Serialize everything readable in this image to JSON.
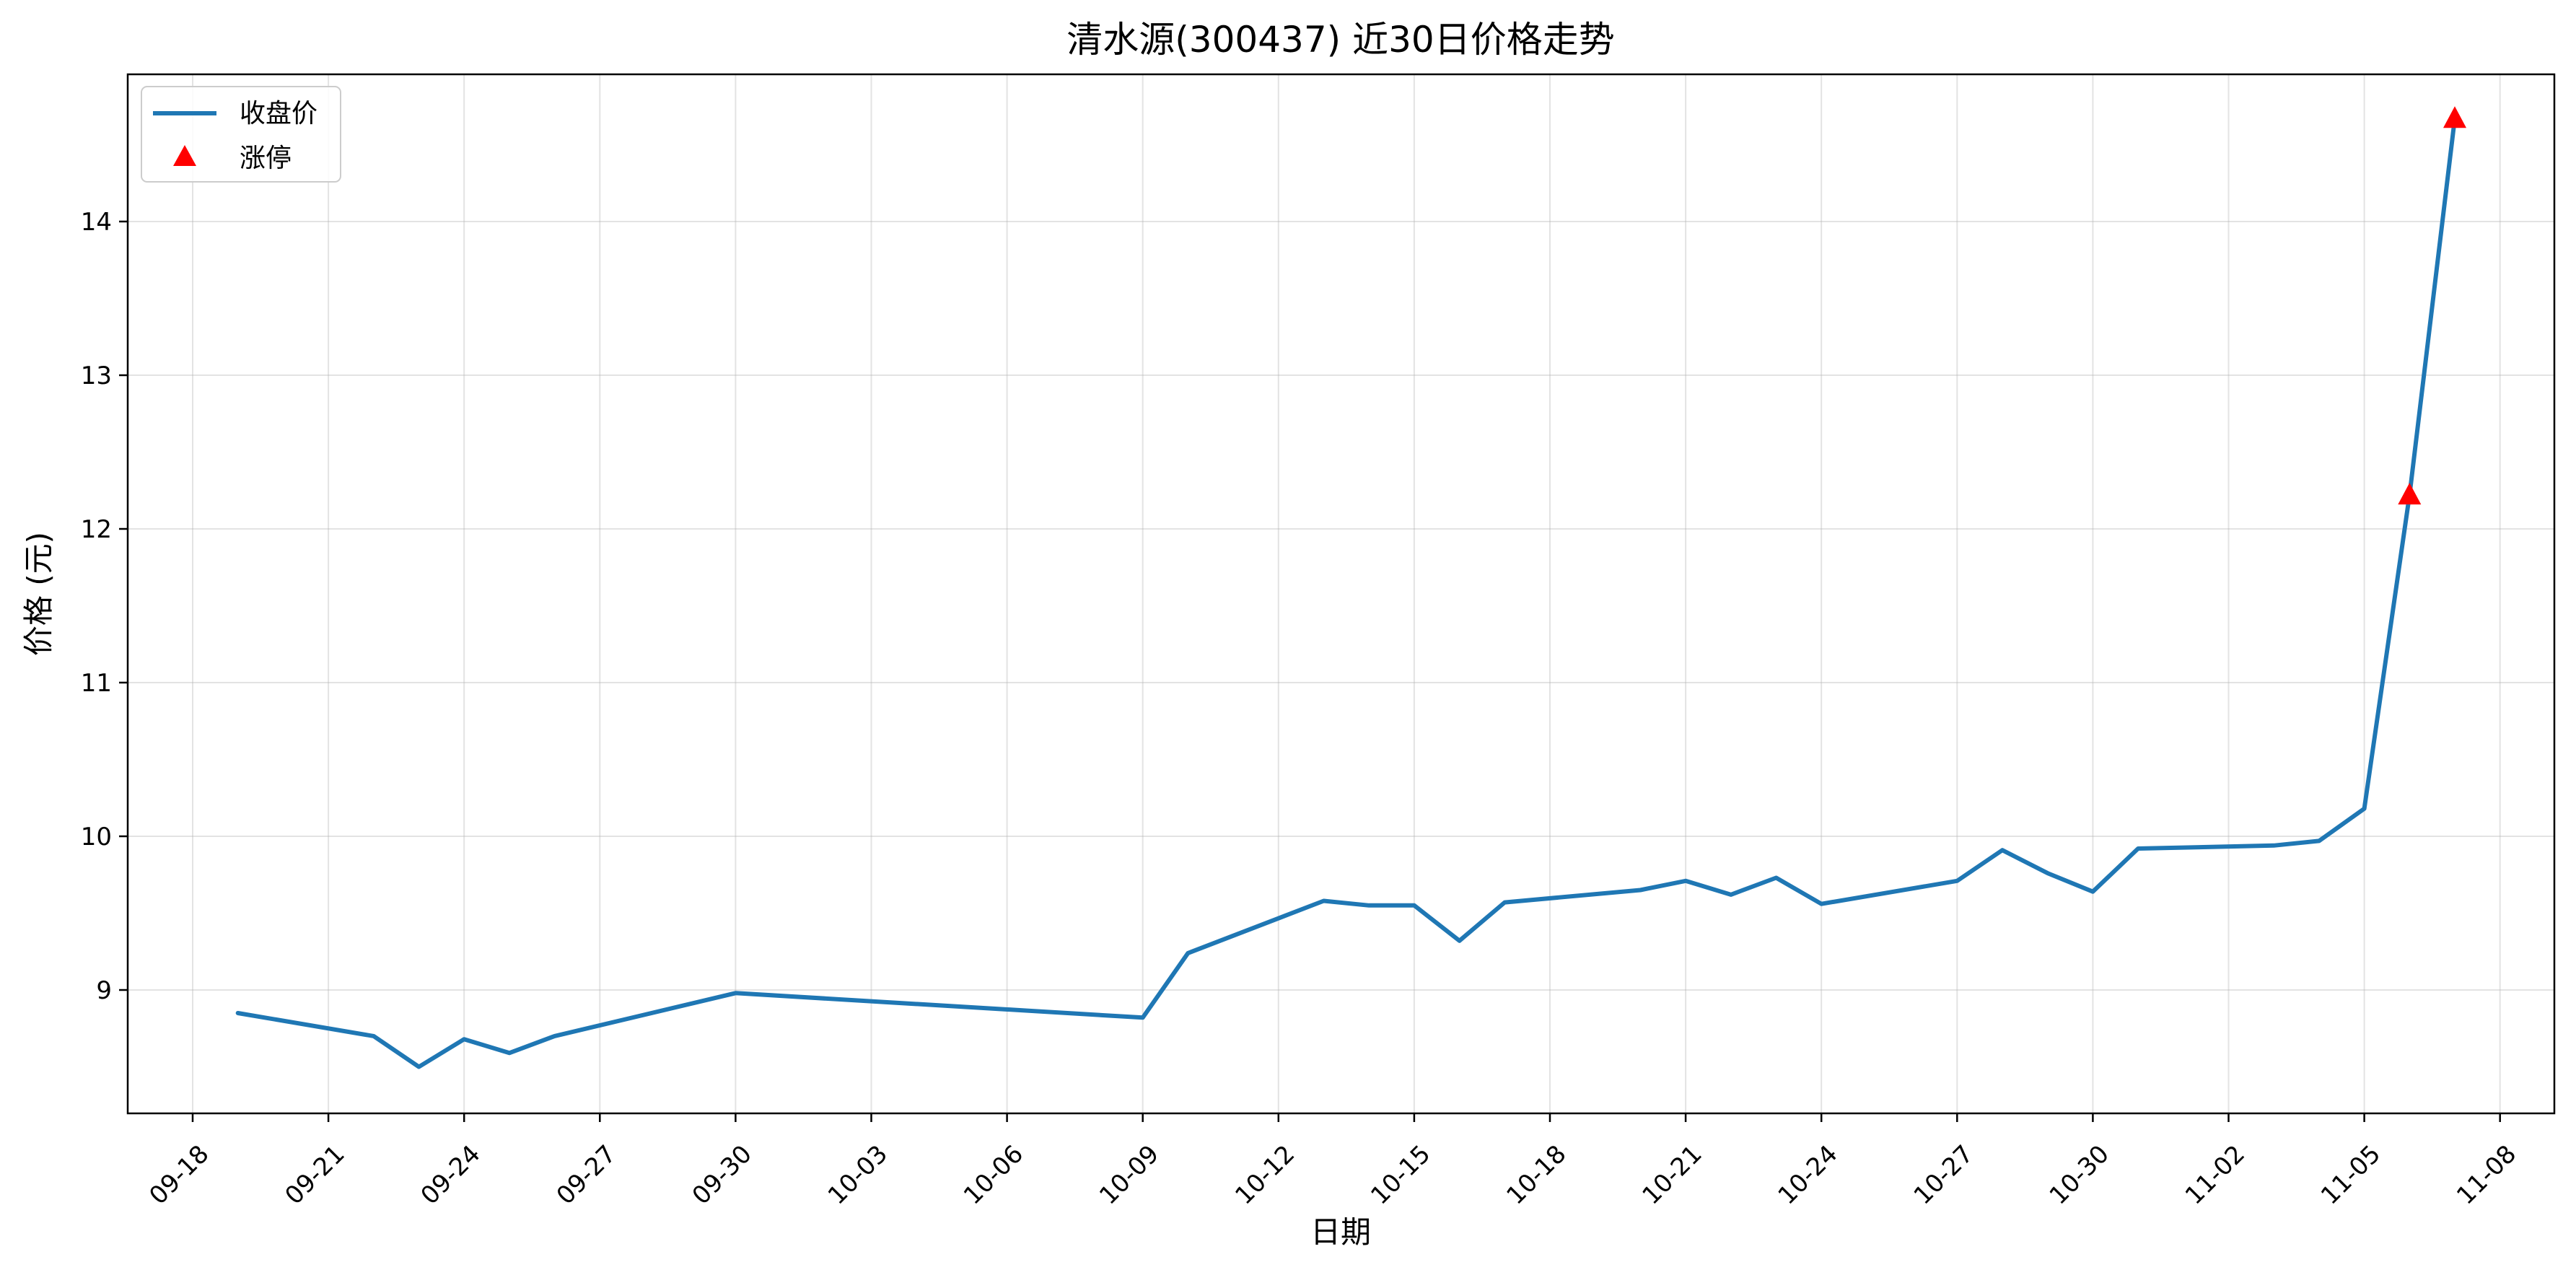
{
  "chart_data": {
    "type": "line",
    "title": "清水源(300437) 近30日价格走势",
    "xlabel": "日期",
    "ylabel": "价格 (元)",
    "ylim": [
      8.18,
      14.95
    ],
    "yticks": [
      9,
      10,
      11,
      12,
      13,
      14
    ],
    "xticks": [
      "09-18",
      "09-21",
      "09-24",
      "09-27",
      "09-30",
      "10-03",
      "10-06",
      "10-09",
      "10-12",
      "10-15",
      "10-18",
      "10-21",
      "10-24",
      "10-27",
      "10-30",
      "11-02",
      "11-05",
      "11-08"
    ],
    "grid": true,
    "legend_position": "upper-left",
    "series": [
      {
        "name": "收盘价",
        "color": "#1f77b4",
        "points": [
          {
            "x": "09-19",
            "y": 8.85
          },
          {
            "x": "09-22",
            "y": 8.7
          },
          {
            "x": "09-23",
            "y": 8.5
          },
          {
            "x": "09-24",
            "y": 8.68
          },
          {
            "x": "09-25",
            "y": 8.59
          },
          {
            "x": "09-26",
            "y": 8.7
          },
          {
            "x": "09-30",
            "y": 8.98
          },
          {
            "x": "10-09",
            "y": 8.82
          },
          {
            "x": "10-10",
            "y": 9.24
          },
          {
            "x": "10-13",
            "y": 9.58
          },
          {
            "x": "10-14",
            "y": 9.55
          },
          {
            "x": "10-15",
            "y": 9.55
          },
          {
            "x": "10-16",
            "y": 9.32
          },
          {
            "x": "10-17",
            "y": 9.57
          },
          {
            "x": "10-20",
            "y": 9.65
          },
          {
            "x": "10-21",
            "y": 9.71
          },
          {
            "x": "10-22",
            "y": 9.62
          },
          {
            "x": "10-23",
            "y": 9.73
          },
          {
            "x": "10-24",
            "y": 9.56
          },
          {
            "x": "10-27",
            "y": 9.71
          },
          {
            "x": "10-28",
            "y": 9.91
          },
          {
            "x": "10-29",
            "y": 9.76
          },
          {
            "x": "10-30",
            "y": 9.64
          },
          {
            "x": "10-31",
            "y": 9.92
          },
          {
            "x": "11-03",
            "y": 9.94
          },
          {
            "x": "11-04",
            "y": 9.97
          },
          {
            "x": "11-05",
            "y": 10.18
          },
          {
            "x": "11-06",
            "y": 12.22
          },
          {
            "x": "11-07",
            "y": 14.67
          }
        ]
      },
      {
        "name": "涨停",
        "type": "scatter",
        "marker": "triangle",
        "color": "#ff0000",
        "points": [
          {
            "x": "11-06",
            "y": 12.22
          },
          {
            "x": "11-07",
            "y": 14.67
          }
        ]
      }
    ]
  }
}
